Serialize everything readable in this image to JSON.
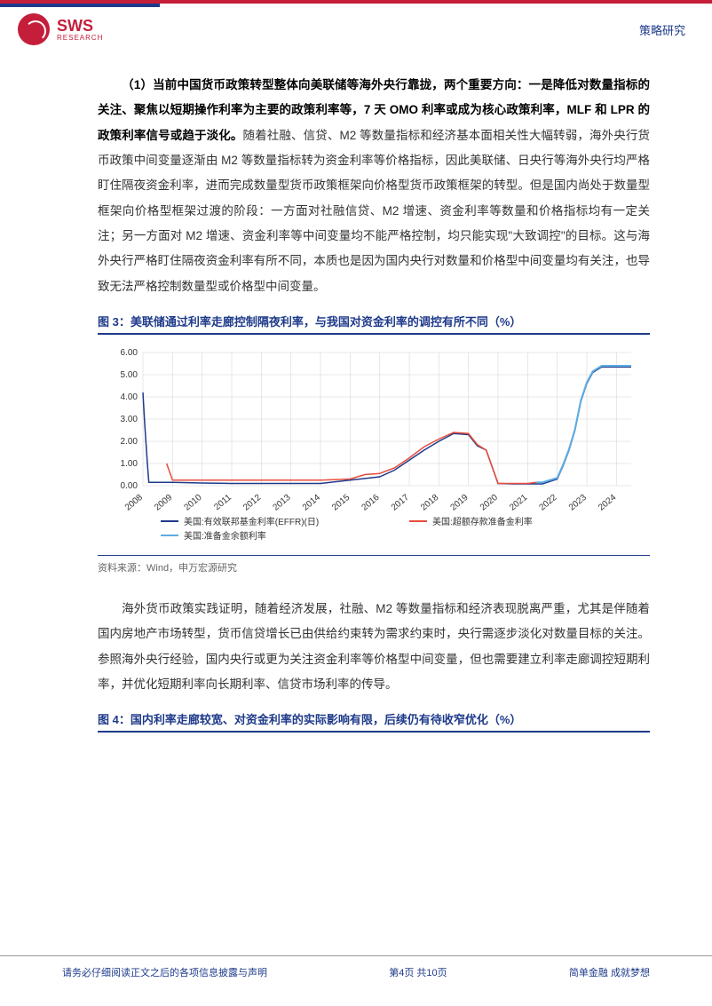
{
  "header": {
    "logo_main": "SWS",
    "logo_sub": "RESEARCH",
    "right_text": "策略研究"
  },
  "body": {
    "para1_bold": "（1）当前中国货币政策转型整体向美联储等海外央行靠拢，两个重要方向：一是降低对数量指标的关注、聚焦以短期操作利率为主要的政策利率等，7 天 OMO 利率或成为核心政策利率，MLF 和 LPR 的政策利率信号或趋于淡化。",
    "para1_rest": "随着社融、信贷、M2 等数量指标和经济基本面相关性大幅转弱，海外央行货币政策中间变量逐渐由 M2 等数量指标转为资金利率等价格指标，因此美联储、日央行等海外央行均严格盯住隔夜资金利率，进而完成数量型货币政策框架向价格型货币政策框架的转型。但是国内尚处于数量型框架向价格型框架过渡的阶段：一方面对社融信贷、M2 增速、资金利率等数量和价格指标均有一定关注；另一方面对 M2 增速、资金利率等中间变量均不能严格控制，均只能实现\"大致调控\"的目标。这与海外央行严格盯住隔夜资金利率有所不同，本质也是因为国内央行对数量和价格型中间变量均有关注，也导致无法严格控制数量型或价格型中间变量。",
    "para2": "海外货币政策实践证明，随着经济发展，社融、M2 等数量指标和经济表现脱离严重，尤其是伴随着国内房地产市场转型，货币信贷增长已由供给约束转为需求约束时，央行需逐步淡化对数量目标的关注。参照海外央行经验，国内央行或更为关注资金利率等价格型中间变量，但也需要建立利率走廊调控短期利率，并优化短期利率向长期利率、信贷市场利率的传导。"
  },
  "figure3": {
    "title": "图 3：美联储通过利率走廊控制隔夜利率，与我国对资金利率的调控有所不同（%）",
    "type": "line",
    "y_ticks": [
      "0.00",
      "1.00",
      "2.00",
      "3.00",
      "4.00",
      "5.00",
      "6.00"
    ],
    "ylim": [
      0,
      6
    ],
    "x_labels": [
      "2008",
      "2009",
      "2010",
      "2011",
      "2012",
      "2013",
      "2014",
      "2015",
      "2016",
      "2017",
      "2018",
      "2019",
      "2020",
      "2021",
      "2022",
      "2023",
      "2024"
    ],
    "legend": [
      {
        "label": "美国:有效联邦基金利率(EFFR)(日)",
        "color": "#1e3a8a"
      },
      {
        "label": "美国:超额存款准备金利率",
        "color": "#e74c3c"
      },
      {
        "label": "美国:准备金余额利率",
        "color": "#5dade2"
      }
    ],
    "series": {
      "effr": {
        "color": "#1e3a8a",
        "width": 1.5,
        "points": [
          [
            0,
            4.2
          ],
          [
            0.05,
            3.0
          ],
          [
            0.1,
            2.0
          ],
          [
            0.15,
            1.0
          ],
          [
            0.2,
            0.15
          ],
          [
            0.5,
            0.15
          ],
          [
            1.0,
            0.15
          ],
          [
            2,
            0.12
          ],
          [
            3,
            0.1
          ],
          [
            4,
            0.1
          ],
          [
            5,
            0.1
          ],
          [
            6,
            0.1
          ],
          [
            7,
            0.25
          ],
          [
            8,
            0.4
          ],
          [
            8.5,
            0.7
          ],
          [
            9,
            1.15
          ],
          [
            9.5,
            1.6
          ],
          [
            10,
            2.0
          ],
          [
            10.5,
            2.35
          ],
          [
            11,
            2.3
          ],
          [
            11.3,
            1.8
          ],
          [
            11.6,
            1.6
          ],
          [
            12,
            0.1
          ],
          [
            12.5,
            0.08
          ],
          [
            13,
            0.08
          ],
          [
            13.5,
            0.08
          ],
          [
            14,
            0.3
          ],
          [
            14.2,
            0.9
          ],
          [
            14.4,
            1.6
          ],
          [
            14.6,
            2.5
          ],
          [
            14.8,
            3.8
          ],
          [
            15,
            4.6
          ],
          [
            15.2,
            5.1
          ],
          [
            15.5,
            5.35
          ],
          [
            16,
            5.35
          ],
          [
            16.5,
            5.35
          ]
        ]
      },
      "ioer": {
        "color": "#e74c3c",
        "width": 1.5,
        "points": [
          [
            0.8,
            1.0
          ],
          [
            1.0,
            0.25
          ],
          [
            2,
            0.25
          ],
          [
            3,
            0.25
          ],
          [
            4,
            0.25
          ],
          [
            5,
            0.25
          ],
          [
            6,
            0.25
          ],
          [
            7,
            0.3
          ],
          [
            7.5,
            0.5
          ],
          [
            8,
            0.55
          ],
          [
            8.5,
            0.8
          ],
          [
            9,
            1.25
          ],
          [
            9.5,
            1.75
          ],
          [
            10,
            2.1
          ],
          [
            10.5,
            2.4
          ],
          [
            11,
            2.35
          ],
          [
            11.3,
            1.85
          ],
          [
            11.6,
            1.6
          ],
          [
            12,
            0.1
          ],
          [
            12.5,
            0.1
          ],
          [
            13,
            0.1
          ],
          [
            13.3,
            0.15
          ]
        ]
      },
      "iorb": {
        "color": "#5dade2",
        "width": 2,
        "points": [
          [
            13.3,
            0.15
          ],
          [
            13.5,
            0.15
          ],
          [
            14,
            0.35
          ],
          [
            14.2,
            0.95
          ],
          [
            14.4,
            1.65
          ],
          [
            14.6,
            2.55
          ],
          [
            14.8,
            3.85
          ],
          [
            15,
            4.65
          ],
          [
            15.2,
            5.15
          ],
          [
            15.5,
            5.4
          ],
          [
            16,
            5.4
          ],
          [
            16.5,
            5.4
          ]
        ]
      }
    },
    "source": "资料来源：Wind，申万宏源研究",
    "grid_color": "#d0d0d0",
    "tick_fontsize": 10,
    "legend_fontsize": 10
  },
  "figure4": {
    "title": "图 4：国内利率走廊较宽、对资金利率的实际影响有限，后续仍有待收窄优化（%）"
  },
  "footer": {
    "left": "请务必仔细阅读正文之后的各项信息披露与声明",
    "center": "第4页 共10页",
    "right": "简单金融 成就梦想"
  }
}
